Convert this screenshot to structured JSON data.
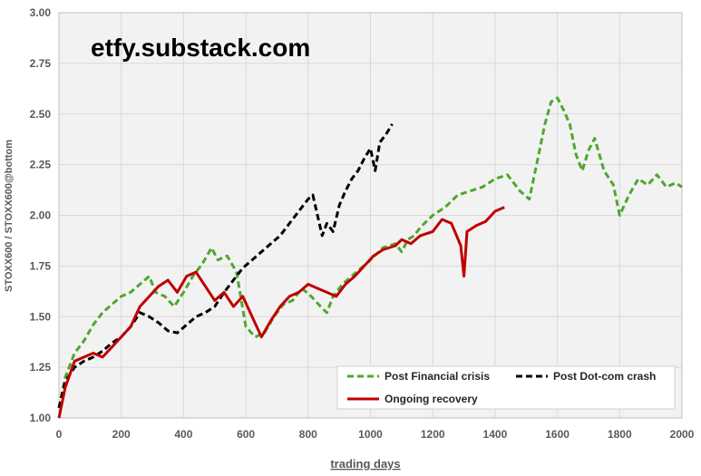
{
  "watermark": "etfy.substack.com",
  "chart_data": {
    "type": "line",
    "title": "",
    "xlabel": "trading days",
    "ylabel": "STOXX600 / STOXX600@bottom",
    "xlim": [
      0,
      2000
    ],
    "ylim": [
      1.0,
      3.0
    ],
    "x_ticks": [
      "0",
      "200",
      "400",
      "600",
      "800",
      "1000",
      "1200",
      "1400",
      "1600",
      "1800",
      "2000"
    ],
    "y_ticks": [
      "1.00",
      "1.25",
      "1.50",
      "1.75",
      "2.00",
      "2.25",
      "2.50",
      "2.75",
      "3.00"
    ],
    "grid": true,
    "background": "#f2f2f2",
    "legend_position": "bottom-right",
    "series": [
      {
        "name": "Post Financial crisis",
        "color": "#4ea72e",
        "style": "dashed",
        "x": [
          0,
          20,
          50,
          80,
          110,
          140,
          170,
          200,
          230,
          260,
          290,
          310,
          340,
          370,
          400,
          430,
          460,
          490,
          510,
          540,
          570,
          600,
          630,
          660,
          690,
          720,
          750,
          780,
          810,
          840,
          860,
          880,
          910,
          940,
          970,
          1000,
          1040,
          1080,
          1100,
          1120,
          1140,
          1160,
          1200,
          1240,
          1280,
          1320,
          1360,
          1400,
          1440,
          1480,
          1510,
          1540,
          1560,
          1580,
          1600,
          1620,
          1640,
          1660,
          1680,
          1700,
          1720,
          1750,
          1780,
          1800,
          1830,
          1860,
          1890,
          1920,
          1950,
          1980,
          2000
        ],
        "y": [
          1.05,
          1.2,
          1.32,
          1.38,
          1.46,
          1.52,
          1.56,
          1.6,
          1.62,
          1.66,
          1.7,
          1.62,
          1.6,
          1.55,
          1.62,
          1.7,
          1.76,
          1.84,
          1.78,
          1.8,
          1.72,
          1.45,
          1.4,
          1.42,
          1.5,
          1.56,
          1.58,
          1.64,
          1.6,
          1.55,
          1.52,
          1.6,
          1.66,
          1.7,
          1.74,
          1.78,
          1.84,
          1.86,
          1.82,
          1.88,
          1.9,
          1.94,
          2.0,
          2.04,
          2.1,
          2.12,
          2.14,
          2.18,
          2.2,
          2.12,
          2.08,
          2.3,
          2.45,
          2.56,
          2.58,
          2.52,
          2.45,
          2.3,
          2.22,
          2.32,
          2.38,
          2.22,
          2.15,
          2.0,
          2.1,
          2.18,
          2.15,
          2.2,
          2.14,
          2.16,
          2.14
        ]
      },
      {
        "name": "Post Dot-com crash",
        "color": "#000000",
        "style": "dashed",
        "x": [
          0,
          20,
          50,
          80,
          110,
          140,
          170,
          200,
          230,
          260,
          290,
          320,
          350,
          380,
          410,
          440,
          470,
          500,
          530,
          560,
          590,
          620,
          650,
          680,
          710,
          740,
          770,
          800,
          815,
          830,
          845,
          860,
          880,
          900,
          920,
          940,
          960,
          980,
          1000,
          1015,
          1030,
          1050,
          1070
        ],
        "y": [
          1.05,
          1.18,
          1.25,
          1.28,
          1.3,
          1.33,
          1.37,
          1.4,
          1.45,
          1.52,
          1.5,
          1.47,
          1.43,
          1.42,
          1.46,
          1.5,
          1.52,
          1.55,
          1.62,
          1.68,
          1.74,
          1.78,
          1.82,
          1.86,
          1.9,
          1.96,
          2.02,
          2.08,
          2.1,
          2.0,
          1.9,
          1.96,
          1.92,
          2.05,
          2.12,
          2.18,
          2.22,
          2.28,
          2.33,
          2.22,
          2.36,
          2.4,
          2.45
        ]
      },
      {
        "name": "Ongoing recovery",
        "color": "#c00000",
        "style": "solid",
        "x": [
          0,
          20,
          50,
          80,
          110,
          140,
          170,
          200,
          230,
          260,
          290,
          320,
          350,
          380,
          410,
          440,
          470,
          500,
          530,
          560,
          590,
          620,
          650,
          680,
          710,
          740,
          770,
          800,
          830,
          860,
          890,
          920,
          950,
          980,
          1010,
          1040,
          1080,
          1100,
          1130,
          1160,
          1200,
          1230,
          1260,
          1290,
          1300,
          1310,
          1340,
          1370,
          1400,
          1430
        ],
        "y": [
          1.0,
          1.15,
          1.28,
          1.3,
          1.32,
          1.3,
          1.35,
          1.4,
          1.45,
          1.55,
          1.6,
          1.65,
          1.68,
          1.62,
          1.7,
          1.72,
          1.65,
          1.58,
          1.62,
          1.55,
          1.6,
          1.5,
          1.4,
          1.48,
          1.55,
          1.6,
          1.62,
          1.66,
          1.64,
          1.62,
          1.6,
          1.66,
          1.7,
          1.75,
          1.8,
          1.83,
          1.85,
          1.88,
          1.86,
          1.9,
          1.92,
          1.98,
          1.96,
          1.85,
          1.7,
          1.92,
          1.95,
          1.97,
          2.02,
          2.04
        ]
      }
    ]
  }
}
